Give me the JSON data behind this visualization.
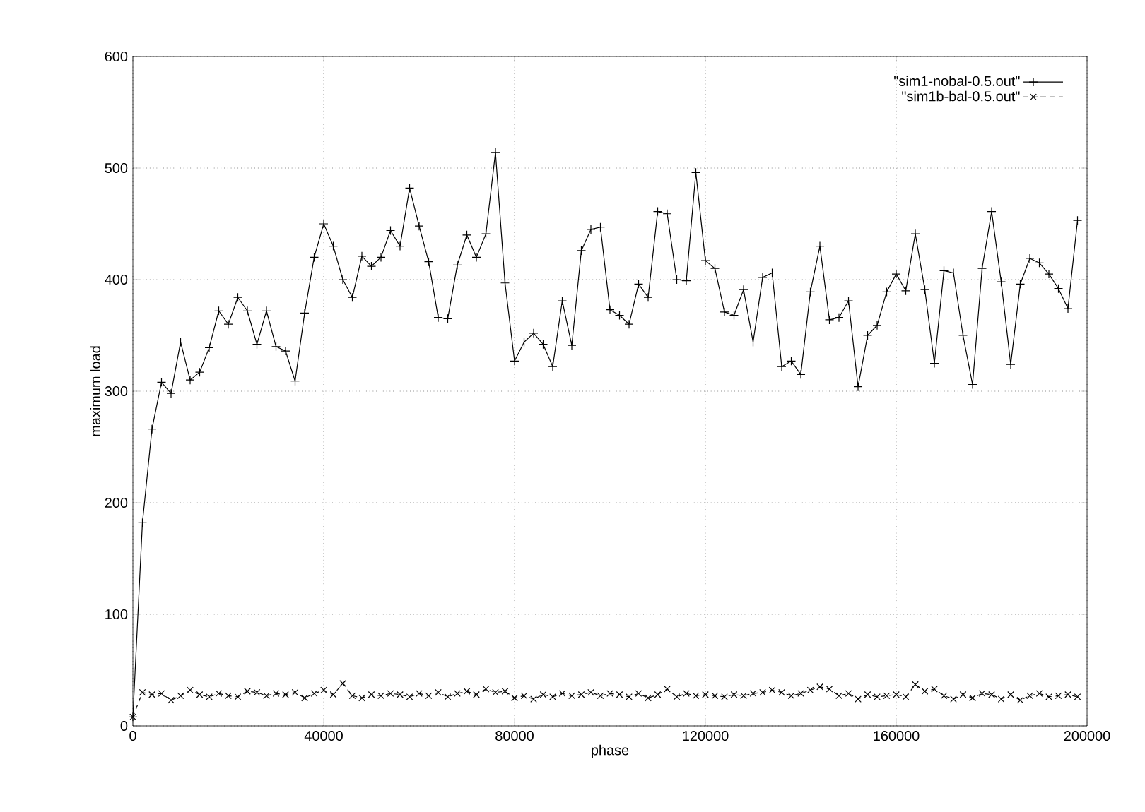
{
  "chart_data": {
    "type": "line",
    "xlabel": "phase",
    "ylabel": "maximum load",
    "x": [
      0,
      2000,
      4000,
      6000,
      8000,
      10000,
      12000,
      14000,
      16000,
      18000,
      20000,
      22000,
      24000,
      26000,
      28000,
      30000,
      32000,
      34000,
      36000,
      38000,
      40000,
      42000,
      44000,
      46000,
      48000,
      50000,
      52000,
      54000,
      56000,
      58000,
      60000,
      62000,
      64000,
      66000,
      68000,
      70000,
      72000,
      74000,
      76000,
      78000,
      80000,
      82000,
      84000,
      86000,
      88000,
      90000,
      92000,
      94000,
      96000,
      98000,
      100000,
      102000,
      104000,
      106000,
      108000,
      110000,
      112000,
      114000,
      116000,
      118000,
      120000,
      122000,
      124000,
      126000,
      128000,
      130000,
      132000,
      134000,
      136000,
      138000,
      140000,
      142000,
      144000,
      146000,
      148000,
      150000,
      152000,
      154000,
      156000,
      158000,
      160000,
      162000,
      164000,
      166000,
      168000,
      170000,
      172000,
      174000,
      176000,
      178000,
      180000,
      182000,
      184000,
      186000,
      188000,
      190000,
      192000,
      194000,
      196000,
      198000
    ],
    "series": [
      {
        "name": "\"sim1-nobal-0.5.out\"",
        "color": "#000000",
        "marker": "cross",
        "line_style": "solid",
        "values": [
          8,
          182,
          266,
          308,
          298,
          344,
          310,
          317,
          339,
          372,
          360,
          384,
          372,
          342,
          372,
          340,
          336,
          309,
          370,
          420,
          450,
          430,
          400,
          384,
          421,
          412,
          420,
          444,
          430,
          482,
          448,
          416,
          366,
          365,
          413,
          440,
          420,
          441,
          514,
          397,
          327,
          344,
          352,
          342,
          322,
          381,
          341,
          426,
          445,
          447,
          373,
          368,
          360,
          396,
          384,
          461,
          459,
          400,
          399,
          496,
          417,
          410,
          371,
          368,
          391,
          344,
          402,
          406,
          322,
          327,
          315,
          389,
          430,
          364,
          366,
          381,
          304,
          350,
          359,
          389,
          405,
          390,
          441,
          391,
          325,
          408,
          406,
          350,
          306,
          410,
          461,
          398,
          324,
          396,
          419,
          415,
          405,
          392,
          374,
          453
        ]
      },
      {
        "name": "\"sim1b-bal-0.5.out\"",
        "color": "#000000",
        "marker": "x",
        "line_style": "dashed",
        "values": [
          8,
          30,
          28,
          29,
          23,
          27,
          32,
          28,
          26,
          29,
          27,
          26,
          31,
          30,
          27,
          29,
          28,
          30,
          25,
          29,
          32,
          28,
          38,
          27,
          25,
          28,
          27,
          29,
          28,
          26,
          29,
          27,
          30,
          26,
          29,
          31,
          28,
          33,
          30,
          31,
          25,
          27,
          24,
          28,
          26,
          29,
          27,
          28,
          30,
          27,
          29,
          28,
          26,
          29,
          25,
          28,
          33,
          26,
          29,
          27,
          28,
          27,
          26,
          28,
          27,
          29,
          30,
          32,
          30,
          27,
          29,
          32,
          35,
          33,
          27,
          29,
          24,
          28,
          26,
          27,
          28,
          26,
          37,
          31,
          33,
          27,
          24,
          28,
          25,
          29,
          28,
          24,
          28,
          23,
          27,
          29,
          26,
          27,
          28,
          26
        ]
      }
    ],
    "xlim": [
      0,
      200000
    ],
    "ylim": [
      0,
      600
    ],
    "xticks": [
      0,
      40000,
      80000,
      120000,
      160000,
      200000
    ],
    "yticks": [
      0,
      100,
      200,
      300,
      400,
      500,
      600
    ],
    "grid": true,
    "legend": "top right"
  }
}
